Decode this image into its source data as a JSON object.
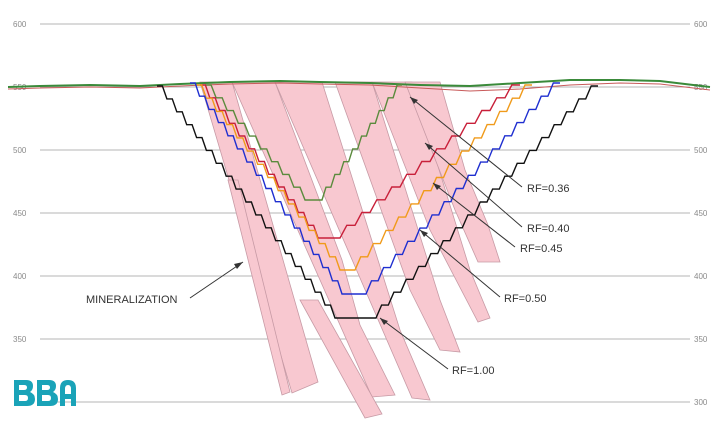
{
  "axis": {
    "ticks": [
      "600",
      "550",
      "500",
      "450",
      "400",
      "350",
      "300"
    ]
  },
  "shells": [
    {
      "label": "RF=0.36",
      "color": "#5a8a3c"
    },
    {
      "label": "RF=0.40",
      "color": "#c8203a"
    },
    {
      "label": "RF=0.45",
      "color": "#f09a1a"
    },
    {
      "label": "RF=0.50",
      "color": "#1f2fd0"
    },
    {
      "label": "RF=1.00",
      "color": "#111111"
    }
  ],
  "annotations": {
    "mineralization": "MINERALIZATION"
  },
  "colors": {
    "mineralization_fill": "#f8c8d0",
    "mineralization_edge": "#c79aa5",
    "topography": "#3a8a3a",
    "grid": "#b5b5b5",
    "logo": "#1aa3b8"
  },
  "logo": {
    "text": "BBA",
    "icon": "bba-logo-icon"
  }
}
